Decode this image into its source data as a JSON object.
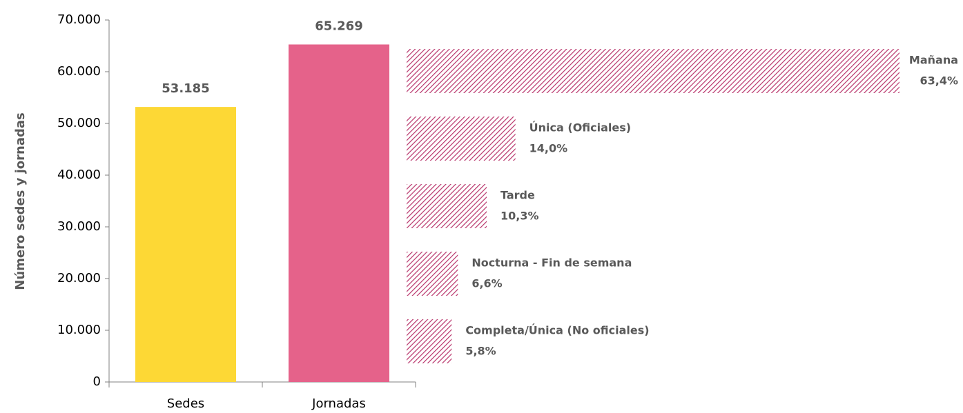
{
  "chart_data": [
    {
      "type": "bar",
      "y_label": "Número sedes y jornadas",
      "categories": [
        "Sedes",
        "Jornadas"
      ],
      "values": [
        53185,
        65269
      ],
      "value_labels": [
        "53.185",
        "65.269"
      ],
      "colors": [
        "#fdd835",
        "#e5628a"
      ],
      "ylim": [
        0,
        70000
      ],
      "yticks": [
        0,
        {
          "value": 10000,
          "label": "10.000"
        },
        {
          "value": 20000,
          "label": "20.000"
        },
        {
          "value": 30000,
          "label": "30.000"
        },
        {
          "value": 40000,
          "label": "40.000"
        },
        {
          "value": 50000,
          "label": "50.000"
        },
        {
          "value": 60000,
          "label": "60.000"
        },
        {
          "value": 70000,
          "label": "70.000"
        }
      ],
      "grid": false
    },
    {
      "type": "hbar",
      "categories": [
        "Mañana",
        "Única (Oficiales)",
        "Tarde",
        "Nocturna - Fin de semana",
        "Completa/Única (No oficiales)"
      ],
      "values": [
        63.4,
        14.0,
        10.3,
        6.6,
        5.8
      ],
      "value_labels": [
        "63,4%",
        "14,0%",
        "10,3%",
        "6,6%",
        "5,8%"
      ],
      "color": "#b8336a",
      "pattern": "hatch"
    }
  ]
}
